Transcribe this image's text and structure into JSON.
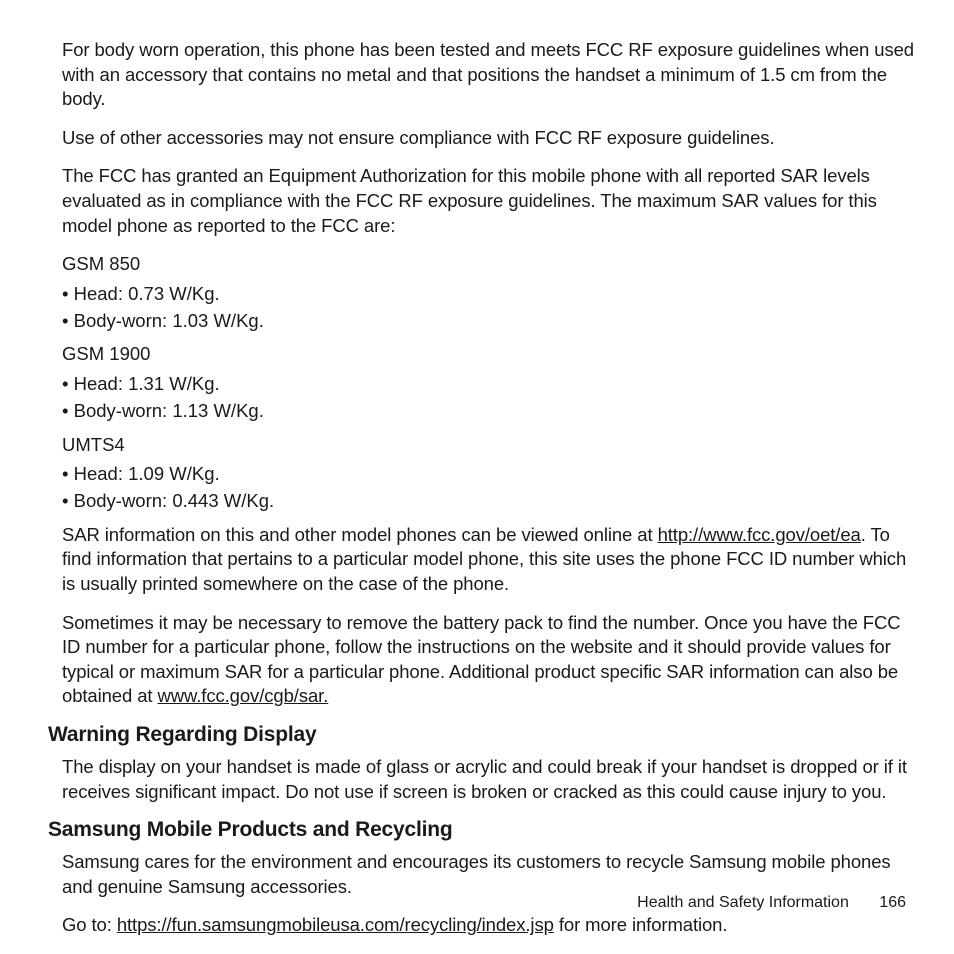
{
  "p1": "For body worn operation, this phone has been tested and meets FCC RF exposure guidelines when used with an accessory that contains no metal and that positions the handset a minimum of 1.5 cm from the body.",
  "p2": "Use of other accessories may not ensure compliance with FCC RF exposure guidelines.",
  "p3": "The FCC has granted an Equipment Authorization for this mobile phone with all reported SAR levels evaluated as in compliance with the FCC RF exposure guidelines. The maximum SAR values for this model phone as reported to the FCC are:",
  "sar": [
    {
      "band": "GSM 850",
      "items": [
        "Head: 0.73 W/Kg.",
        "Body-worn: 1.03 W/Kg."
      ]
    },
    {
      "band": "GSM 1900",
      "items": [
        "Head: 1.31 W/Kg.",
        "Body-worn: 1.13 W/Kg."
      ]
    },
    {
      "band": "UMTS4",
      "items": [
        "Head: 1.09 W/Kg.",
        "Body-worn: 0.443 W/Kg."
      ]
    }
  ],
  "p4_a": "SAR information on this and other model phones can be viewed online at ",
  "p4_link": "http://www.fcc.gov/oet/ea",
  "p4_b": ". To find information that pertains to a particular model phone, this site uses the phone FCC ID number which is usually printed somewhere on the case of the phone.",
  "p5_a": "Sometimes it may be necessary to remove the battery pack to find the number. Once you have the FCC ID number for a particular phone, follow the instructions on the website and it should provide values for typical or maximum SAR for a particular phone. Additional product specific SAR information can also be obtained at ",
  "p5_link": "www.fcc.gov/cgb/sar.",
  "h1": "Warning Regarding Display",
  "p6": "The display on your handset is made of glass or acrylic and could break if your handset is dropped or if it receives significant impact. Do not use if screen is broken or cracked as this could cause injury to you.",
  "h2": "Samsung Mobile Products and Recycling",
  "p7": "Samsung cares for the environment and encourages its customers to recycle Samsung mobile phones and genuine Samsung accessories.",
  "p8_a": "Go to: ",
  "p8_link": "https://fun.samsungmobileusa.com/recycling/index.jsp",
  "p8_b": " for more information.",
  "footer_label": "Health and Safety Information",
  "footer_page": "166"
}
